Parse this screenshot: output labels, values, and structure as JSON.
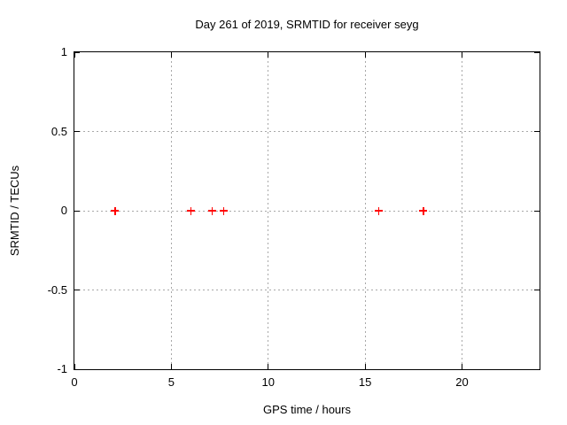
{
  "chart_data": {
    "type": "scatter",
    "title": "Day 261 of 2019, SRMTID for receiver seyg",
    "xlabel": "GPS time / hours",
    "ylabel": "SRMTID / TECUs",
    "xlim": [
      0,
      24
    ],
    "ylim": [
      -1,
      1
    ],
    "xticks": [
      0,
      5,
      10,
      15,
      20
    ],
    "yticks": [
      -1,
      -0.5,
      0,
      0.5,
      1
    ],
    "grid": true,
    "legend": false,
    "marker": "plus",
    "colors": {
      "marker": "#ff0000",
      "grid": "#a8a8a8",
      "axis": "#000000",
      "background": "#ffffff"
    },
    "series": [
      {
        "name": "SRMTID",
        "color": "#ff0000",
        "points": [
          {
            "x": 2.1,
            "y": 0
          },
          {
            "x": 6.0,
            "y": 0
          },
          {
            "x": 7.1,
            "y": 0
          },
          {
            "x": 7.7,
            "y": 0
          },
          {
            "x": 15.7,
            "y": 0
          },
          {
            "x": 18.0,
            "y": 0
          }
        ]
      }
    ]
  }
}
